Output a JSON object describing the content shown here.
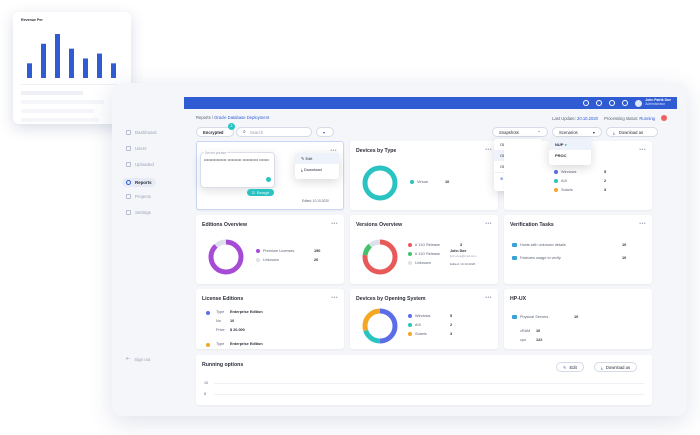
{
  "topbar": {
    "user_name": "John Patrik Doe",
    "user_sub": "Administrator"
  },
  "sidebar": {
    "items": [
      {
        "label": "Dashboard",
        "icon": "dashboard-icon"
      },
      {
        "label": "Users",
        "icon": "users-icon"
      },
      {
        "label": "Uploaded",
        "icon": "upload-icon"
      },
      {
        "label": "Reports",
        "icon": "reports-icon"
      },
      {
        "label": "Projects",
        "icon": "projects-icon"
      },
      {
        "label": "Settings",
        "icon": "gear-icon"
      }
    ],
    "sign_out": "Sign out"
  },
  "breadcrumb": {
    "root": "Reports",
    "separator": " / ",
    "current": "Oracle Database Deployment"
  },
  "status": {
    "last_update_label": "Last Update:",
    "last_update_value": "20.10.2020",
    "processing_label": "Processing status:",
    "processing_value": "Running",
    "processing_color": "#f0605e"
  },
  "toolbar": {
    "filter_value": "Encrypted",
    "filter_badge": "2",
    "search_placeholder": "Search",
    "snapshots_label": "Snapshots",
    "scenarios_label": "Scenarios",
    "download_label": "Download as"
  },
  "snapshots_menu": {
    "items": [
      "ODD Current",
      "ODD V1",
      "ODD V2"
    ],
    "add_label": "Snapshot"
  },
  "scenarios_menu": {
    "items": [
      "NUP",
      "PROC"
    ]
  },
  "encrypt_dialog": {
    "label": "Secret phrase",
    "value": "•••••••••••••••• •••••••••• ••••••••••• •••••••",
    "button": "Encrypt"
  },
  "edit_menu": {
    "items": [
      "Edit",
      "Download"
    ],
    "edited": "Edited: 10.10.2020"
  },
  "cards": {
    "devices_by_type": {
      "title": "Devices by Type",
      "legend": [
        {
          "name": "Virtual",
          "value": "10",
          "color": "#29c3c1"
        }
      ]
    },
    "os_card": {
      "legend": [
        {
          "name": "Windows",
          "value": "5",
          "color": "#5b6ee8"
        },
        {
          "name": "AIX",
          "value": "2",
          "color": "#29c3c1"
        },
        {
          "name": "Solaris",
          "value": "3",
          "color": "#f5a623"
        }
      ]
    },
    "editions_overview": {
      "title": "Editions Overview",
      "legend": [
        {
          "name": "Premium Licenses",
          "value": "150",
          "color": "#a54bd6"
        },
        {
          "name": "Unknown",
          "value": "20",
          "color": "#dde1ea"
        }
      ]
    },
    "versions_overview": {
      "title": "Versions Overview",
      "legend": [
        {
          "name": "# 11G Release",
          "value": "3",
          "color": "#e85a5a"
        },
        {
          "name": "# 11G Release",
          "value": "",
          "color": "#43c26b"
        },
        {
          "name": "Unknown",
          "value": "",
          "color": "#dde1ea"
        }
      ],
      "tooltip_name": "John Doe",
      "tooltip_email": "john.doe@mail.com",
      "tooltip_edited": "Edited: 10.10.2020"
    },
    "verification_tasks": {
      "title": "Verification Tasks",
      "rows": [
        {
          "label": "Hosts with unknown details",
          "value": "10"
        },
        {
          "label": "Features usage to verify",
          "value": "10"
        }
      ]
    },
    "license_editions": {
      "title": "License Editions",
      "rows": [
        {
          "key": "Type",
          "val": "Enterprise Edition"
        },
        {
          "key": "No",
          "val": "10"
        },
        {
          "key": "Price",
          "val": "$ 20.000"
        },
        {
          "key": "Type",
          "val": "Enterprise Edition"
        }
      ]
    },
    "devices_by_os": {
      "title": "Devices by Opening System",
      "legend": [
        {
          "name": "Windows",
          "value": "5",
          "color": "#5b6ee8"
        },
        {
          "name": "AIX",
          "value": "2",
          "color": "#29c3c1"
        },
        {
          "name": "Solaris",
          "value": "3",
          "color": "#f5a623"
        }
      ]
    },
    "hp_ux": {
      "title": "HP-UX",
      "physical_label": "Physical Servers",
      "physical_value": "10",
      "rows": [
        {
          "key": "vRAM",
          "val": "10"
        },
        {
          "key": "cpu",
          "val": "122"
        }
      ]
    },
    "running_options": {
      "title": "Running options",
      "edit_label": "Edit",
      "download_label": "Download as",
      "y_ticks": [
        "10",
        "8"
      ]
    }
  },
  "mini_chart": {
    "title": "Revenue Per",
    "values": [
      3,
      7,
      9,
      6,
      4,
      5,
      3
    ]
  }
}
